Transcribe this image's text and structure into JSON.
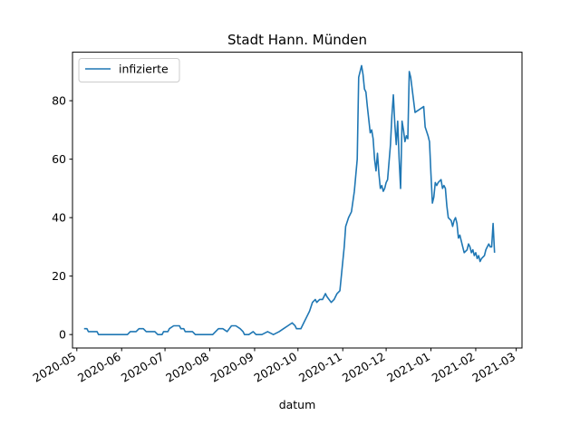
{
  "chart_data": {
    "type": "line",
    "title": "Stadt Hann. Münden",
    "xlabel": "datum",
    "ylabel": "",
    "x_ticks": [
      "2020-05",
      "2020-06",
      "2020-07",
      "2020-08",
      "2020-09",
      "2020-10",
      "2020-11",
      "2020-12",
      "2021-01",
      "2021-02",
      "2021-03"
    ],
    "y_ticks": [
      0,
      20,
      40,
      60,
      80
    ],
    "xlim": [
      "2020-04-28",
      "2021-03-05"
    ],
    "ylim": [
      -4.6,
      96.6
    ],
    "grid": false,
    "legend_position": "top-left",
    "line_color": "#1f77b4",
    "series": [
      {
        "name": "infizierte",
        "points": [
          [
            "2020-05-06",
            2
          ],
          [
            "2020-05-08",
            2
          ],
          [
            "2020-05-09",
            1
          ],
          [
            "2020-05-12",
            1
          ],
          [
            "2020-05-15",
            1
          ],
          [
            "2020-05-16",
            0
          ],
          [
            "2020-05-20",
            0
          ],
          [
            "2020-05-25",
            0
          ],
          [
            "2020-05-30",
            0
          ],
          [
            "2020-06-05",
            0
          ],
          [
            "2020-06-07",
            1
          ],
          [
            "2020-06-11",
            1
          ],
          [
            "2020-06-13",
            2
          ],
          [
            "2020-06-16",
            2
          ],
          [
            "2020-06-18",
            1
          ],
          [
            "2020-06-24",
            1
          ],
          [
            "2020-06-26",
            0
          ],
          [
            "2020-06-29",
            0
          ],
          [
            "2020-06-30",
            1
          ],
          [
            "2020-07-03",
            1
          ],
          [
            "2020-07-04",
            2
          ],
          [
            "2020-07-07",
            3
          ],
          [
            "2020-07-11",
            3
          ],
          [
            "2020-07-12",
            2
          ],
          [
            "2020-07-14",
            2
          ],
          [
            "2020-07-15",
            1
          ],
          [
            "2020-07-20",
            1
          ],
          [
            "2020-07-22",
            0
          ],
          [
            "2020-07-25",
            0
          ],
          [
            "2020-07-30",
            0
          ],
          [
            "2020-08-03",
            0
          ],
          [
            "2020-08-05",
            1
          ],
          [
            "2020-08-07",
            2
          ],
          [
            "2020-08-10",
            2
          ],
          [
            "2020-08-13",
            1
          ],
          [
            "2020-08-16",
            3
          ],
          [
            "2020-08-19",
            3
          ],
          [
            "2020-08-22",
            2
          ],
          [
            "2020-08-24",
            1
          ],
          [
            "2020-08-25",
            0
          ],
          [
            "2020-08-28",
            0
          ],
          [
            "2020-08-31",
            1
          ],
          [
            "2020-09-02",
            0
          ],
          [
            "2020-09-06",
            0
          ],
          [
            "2020-09-10",
            1
          ],
          [
            "2020-09-14",
            0
          ],
          [
            "2020-09-18",
            1
          ],
          [
            "2020-09-21",
            2
          ],
          [
            "2020-09-24",
            3
          ],
          [
            "2020-09-27",
            4
          ],
          [
            "2020-09-29",
            3
          ],
          [
            "2020-09-30",
            2
          ],
          [
            "2020-10-03",
            2
          ],
          [
            "2020-10-05",
            4
          ],
          [
            "2020-10-07",
            6
          ],
          [
            "2020-10-09",
            8
          ],
          [
            "2020-10-11",
            11
          ],
          [
            "2020-10-13",
            12
          ],
          [
            "2020-10-14",
            11
          ],
          [
            "2020-10-16",
            12
          ],
          [
            "2020-10-18",
            12
          ],
          [
            "2020-10-20",
            14
          ],
          [
            "2020-10-21",
            13
          ],
          [
            "2020-10-24",
            11
          ],
          [
            "2020-10-26",
            12
          ],
          [
            "2020-10-28",
            14
          ],
          [
            "2020-10-30",
            15
          ],
          [
            "2020-11-02",
            30
          ],
          [
            "2020-11-03",
            37
          ],
          [
            "2020-11-05",
            40
          ],
          [
            "2020-11-07",
            42
          ],
          [
            "2020-11-09",
            49
          ],
          [
            "2020-11-11",
            60
          ],
          [
            "2020-11-12",
            88
          ],
          [
            "2020-11-14",
            92
          ],
          [
            "2020-11-15",
            89
          ],
          [
            "2020-11-16",
            84
          ],
          [
            "2020-11-17",
            83
          ],
          [
            "2020-11-18",
            78
          ],
          [
            "2020-11-20",
            69
          ],
          [
            "2020-11-21",
            70
          ],
          [
            "2020-11-22",
            67
          ],
          [
            "2020-11-23",
            60
          ],
          [
            "2020-11-24",
            56
          ],
          [
            "2020-11-25",
            62
          ],
          [
            "2020-11-26",
            55
          ],
          [
            "2020-11-27",
            50
          ],
          [
            "2020-11-28",
            51
          ],
          [
            "2020-11-29",
            49
          ],
          [
            "2020-11-30",
            50
          ],
          [
            "2020-12-01",
            52
          ],
          [
            "2020-12-02",
            53
          ],
          [
            "2020-12-04",
            65
          ],
          [
            "2020-12-05",
            75
          ],
          [
            "2020-12-06",
            82
          ],
          [
            "2020-12-07",
            72
          ],
          [
            "2020-12-08",
            65
          ],
          [
            "2020-12-09",
            73
          ],
          [
            "2020-12-10",
            60
          ],
          [
            "2020-12-11",
            50
          ],
          [
            "2020-12-12",
            73
          ],
          [
            "2020-12-13",
            70
          ],
          [
            "2020-12-14",
            66
          ],
          [
            "2020-12-15",
            68
          ],
          [
            "2020-12-16",
            67
          ],
          [
            "2020-12-17",
            90
          ],
          [
            "2020-12-18",
            88
          ],
          [
            "2020-12-19",
            84
          ],
          [
            "2020-12-20",
            80
          ],
          [
            "2020-12-21",
            76
          ],
          [
            "2020-12-24",
            77
          ],
          [
            "2020-12-27",
            78
          ],
          [
            "2020-12-28",
            71
          ],
          [
            "2020-12-30",
            68
          ],
          [
            "2020-12-31",
            66
          ],
          [
            "2021-01-01",
            55
          ],
          [
            "2021-01-02",
            45
          ],
          [
            "2021-01-03",
            47
          ],
          [
            "2021-01-04",
            52
          ],
          [
            "2021-01-05",
            51
          ],
          [
            "2021-01-06",
            52
          ],
          [
            "2021-01-08",
            53
          ],
          [
            "2021-01-09",
            50
          ],
          [
            "2021-01-10",
            51
          ],
          [
            "2021-01-11",
            50
          ],
          [
            "2021-01-12",
            44
          ],
          [
            "2021-01-13",
            40
          ],
          [
            "2021-01-15",
            39
          ],
          [
            "2021-01-16",
            37
          ],
          [
            "2021-01-17",
            39
          ],
          [
            "2021-01-18",
            40
          ],
          [
            "2021-01-19",
            38
          ],
          [
            "2021-01-20",
            33
          ],
          [
            "2021-01-21",
            34
          ],
          [
            "2021-01-22",
            32
          ],
          [
            "2021-01-23",
            30
          ],
          [
            "2021-01-24",
            28
          ],
          [
            "2021-01-26",
            29
          ],
          [
            "2021-01-27",
            31
          ],
          [
            "2021-01-28",
            30
          ],
          [
            "2021-01-29",
            28
          ],
          [
            "2021-01-30",
            29
          ],
          [
            "2021-01-31",
            27
          ],
          [
            "2021-02-01",
            28
          ],
          [
            "2021-02-02",
            26
          ],
          [
            "2021-02-03",
            27
          ],
          [
            "2021-02-04",
            25
          ],
          [
            "2021-02-05",
            26
          ],
          [
            "2021-02-07",
            27
          ],
          [
            "2021-02-08",
            29
          ],
          [
            "2021-02-09",
            30
          ],
          [
            "2021-02-10",
            31
          ],
          [
            "2021-02-11",
            30
          ],
          [
            "2021-02-12",
            30
          ],
          [
            "2021-02-13",
            38
          ],
          [
            "2021-02-14",
            28
          ]
        ]
      }
    ]
  }
}
